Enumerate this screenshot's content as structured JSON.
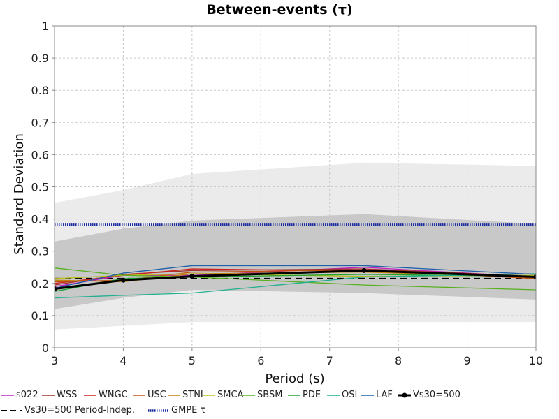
{
  "chart_data": {
    "type": "line",
    "title": "Between-events (τ)",
    "xlabel": "Period (s)",
    "ylabel": "Standard Deviation",
    "xlim": [
      3,
      10
    ],
    "ylim": [
      0,
      1
    ],
    "xticks": [
      "3",
      "4",
      "5",
      "6",
      "7",
      "8",
      "9",
      "10"
    ],
    "yticks": [
      "0",
      "0.1",
      "0.2",
      "0.3",
      "0.4",
      "0.5",
      "0.6",
      "0.7",
      "0.8",
      "0.9",
      "1"
    ],
    "grid": true,
    "legend_position": "bottom",
    "x": [
      3,
      4,
      5,
      7.5,
      10
    ],
    "bands": [
      {
        "color": "#ebebeb",
        "lower": [
          0.057,
          0.068,
          0.08,
          0.08,
          0.08
        ],
        "upper": [
          0.45,
          0.49,
          0.54,
          0.575,
          0.565
        ]
      },
      {
        "color": "#c8c8c8",
        "lower": [
          0.12,
          0.155,
          0.18,
          0.17,
          0.15
        ],
        "upper": [
          0.33,
          0.37,
          0.395,
          0.415,
          0.385
        ]
      }
    ],
    "series": [
      {
        "name": "s022",
        "color": "#c020c0",
        "values": [
          0.19,
          0.225,
          0.225,
          0.25,
          0.22
        ]
      },
      {
        "name": "WSS",
        "color": "#a0302a",
        "values": [
          0.195,
          0.228,
          0.24,
          0.245,
          0.222
        ]
      },
      {
        "name": "WNGC",
        "color": "#cc2020",
        "values": [
          0.2,
          0.225,
          0.245,
          0.238,
          0.222
        ]
      },
      {
        "name": "USC",
        "color": "#c05010",
        "values": [
          0.205,
          0.21,
          0.235,
          0.242,
          0.215
        ]
      },
      {
        "name": "STNI",
        "color": "#c08010",
        "values": [
          0.21,
          0.205,
          0.23,
          0.235,
          0.22
        ]
      },
      {
        "name": "SMCA",
        "color": "#b8c018",
        "values": [
          0.215,
          0.225,
          0.23,
          0.222,
          0.225
        ]
      },
      {
        "name": "SBSM",
        "color": "#58b020",
        "values": [
          0.248,
          0.225,
          0.22,
          0.195,
          0.18
        ]
      },
      {
        "name": "PDE",
        "color": "#20a030",
        "values": [
          0.175,
          0.215,
          0.22,
          0.228,
          0.222
        ]
      },
      {
        "name": "OSI",
        "color": "#20b090",
        "values": [
          0.155,
          0.163,
          0.17,
          0.22,
          0.23
        ]
      },
      {
        "name": "LAF",
        "color": "#2060a8",
        "values": [
          0.185,
          0.232,
          0.255,
          0.255,
          0.228
        ]
      },
      {
        "name": "Vs30=500",
        "color": "#000000",
        "values": [
          0.183,
          0.21,
          0.222,
          0.24,
          0.22
        ],
        "markers": true,
        "bold": true
      }
    ],
    "reference_lines": [
      {
        "name": "Vs30=500 Period-Indep.",
        "color": "#000000",
        "style": "dashed",
        "value": 0.215
      },
      {
        "name": "GMPE τ",
        "color": "#1a2aa0",
        "style": "dotted",
        "value": 0.382
      }
    ]
  }
}
